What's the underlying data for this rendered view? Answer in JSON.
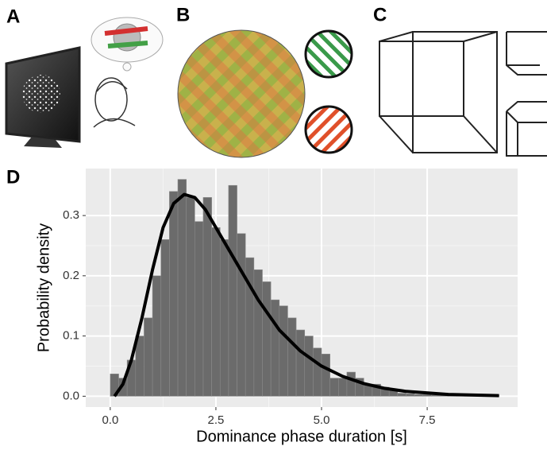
{
  "panel_labels": [
    "A",
    "B",
    "C",
    "D"
  ],
  "chart_data": {
    "type": "histogram",
    "bins": [
      0,
      0.2,
      0.4,
      0.6,
      0.8,
      1.0,
      1.2,
      1.4,
      1.6,
      1.8,
      2.0,
      2.2,
      2.4,
      2.6,
      2.8,
      3.0,
      3.2,
      3.4,
      3.6,
      3.8,
      4.0,
      4.2,
      4.4,
      4.6,
      4.8,
      5.0,
      5.2,
      5.4,
      5.6,
      5.8,
      6.0,
      6.2,
      6.4,
      6.6,
      6.8,
      7.0,
      7.2,
      7.4,
      7.6,
      7.8,
      8.0,
      8.2,
      8.4,
      8.6,
      8.8,
      9.0,
      9.2
    ],
    "counts": [
      0.037,
      0.03,
      0.06,
      0.1,
      0.13,
      0.2,
      0.26,
      0.34,
      0.36,
      0.33,
      0.29,
      0.33,
      0.28,
      0.26,
      0.35,
      0.27,
      0.23,
      0.21,
      0.19,
      0.16,
      0.15,
      0.13,
      0.11,
      0.1,
      0.08,
      0.07,
      0.03,
      0.03,
      0.04,
      0.03,
      0.02,
      0.02,
      0.015,
      0.01,
      0.005,
      0.004,
      0.003,
      0.003,
      0.002,
      0.002,
      0.002,
      0.001,
      0.001,
      0.001,
      0.001,
      0.001
    ],
    "color": "#6b6b6b",
    "curve": {
      "x": [
        0.1,
        0.3,
        0.5,
        0.75,
        1.0,
        1.25,
        1.5,
        1.75,
        2.0,
        2.25,
        2.5,
        3.0,
        3.5,
        4.0,
        4.5,
        5.0,
        5.5,
        6.0,
        6.5,
        7.0,
        8.0,
        9.2
      ],
      "values": [
        0.0,
        0.02,
        0.06,
        0.13,
        0.21,
        0.28,
        0.32,
        0.335,
        0.33,
        0.31,
        0.28,
        0.22,
        0.16,
        0.11,
        0.075,
        0.05,
        0.033,
        0.021,
        0.013,
        0.008,
        0.003,
        0.001
      ],
      "color": "#000000"
    },
    "xlabel": "Dominance phase duration [s]",
    "ylabel": "Probability density",
    "xlim": [
      -0.58,
      9.64
    ],
    "ylim": [
      -0.018,
      0.378
    ],
    "xticks": [
      {
        "value": 0,
        "label": "0.0"
      },
      2.5,
      {
        "value": 5,
        "label": "5.0"
      },
      7.5
    ],
    "yticks": [
      {
        "value": 0,
        "label": "0.0"
      },
      0.1,
      0.2,
      0.3
    ],
    "grid": true
  }
}
